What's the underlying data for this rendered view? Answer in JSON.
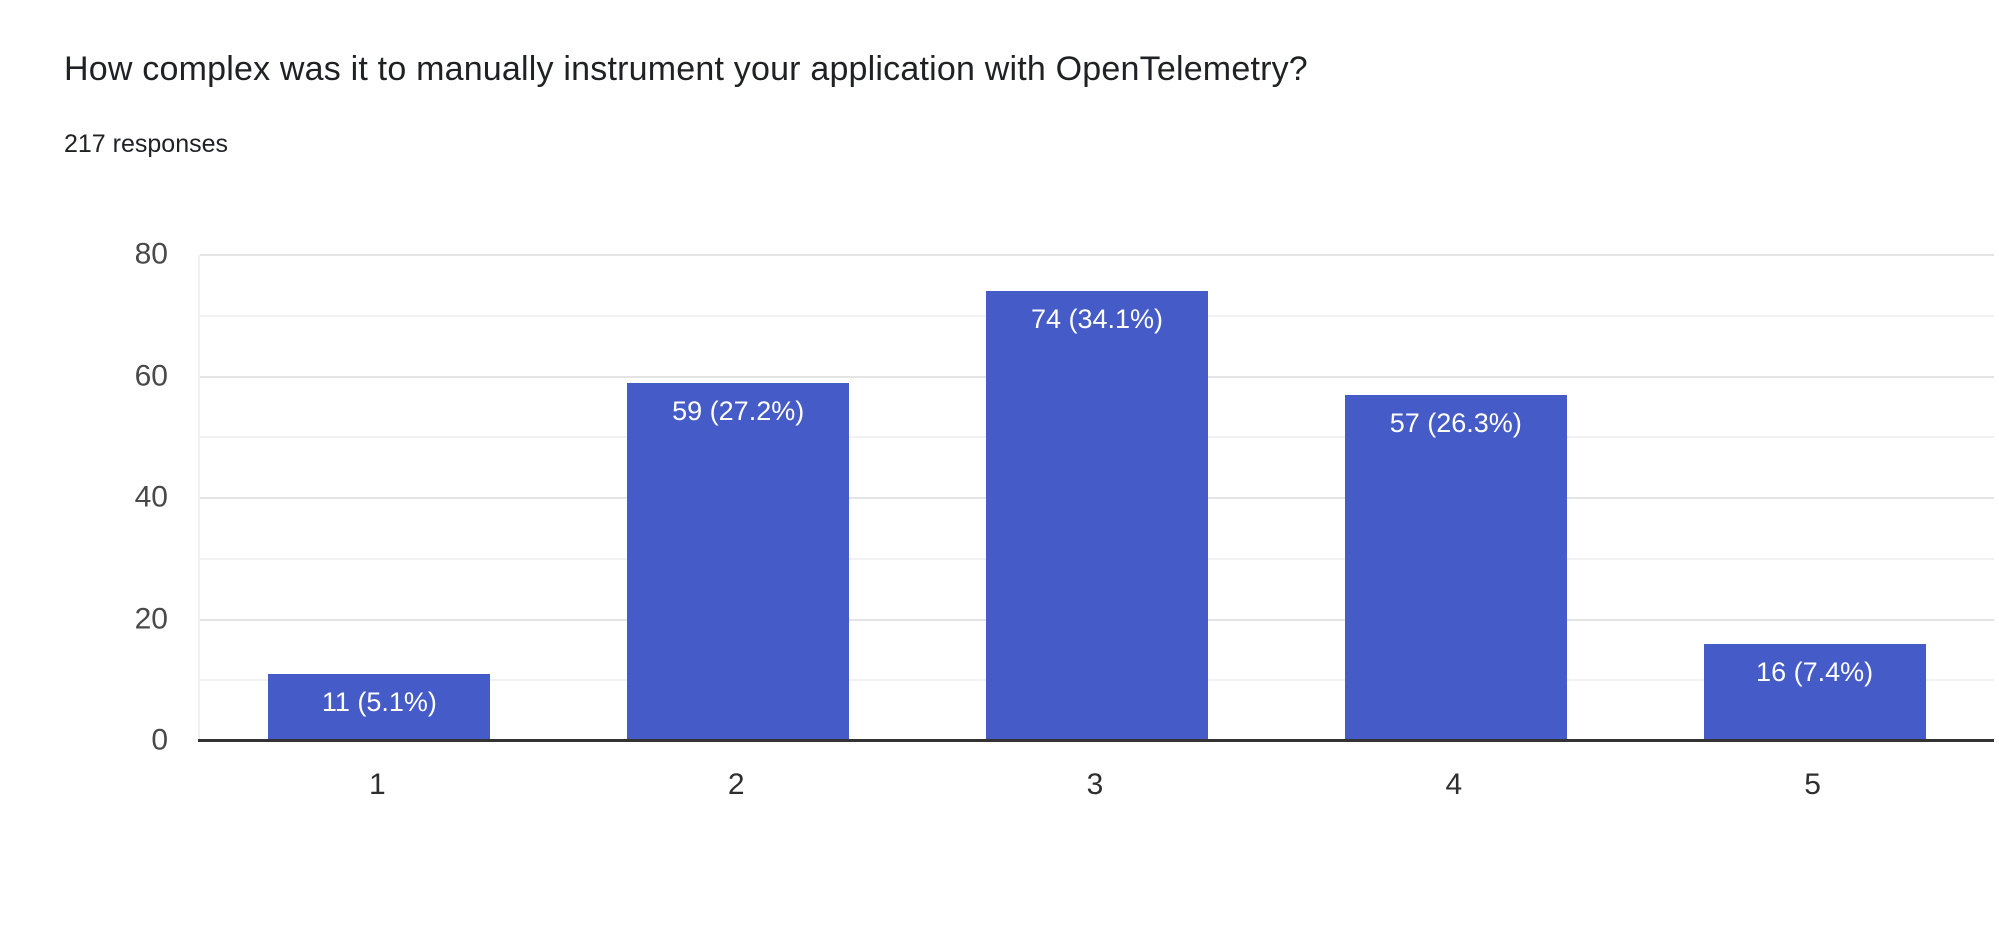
{
  "header": {
    "title": "How complex was it to manually instrument your application with OpenTelemetry?",
    "subtitle": "217 responses"
  },
  "chart_data": {
    "type": "bar",
    "title": "How complex was it to manually instrument your application with OpenTelemetry?",
    "subtitle": "217 responses",
    "categories": [
      "1",
      "2",
      "3",
      "4",
      "5"
    ],
    "values": [
      11,
      59,
      74,
      57,
      16
    ],
    "bar_labels": [
      "11 (5.1%)",
      "59 (27.2%)",
      "74 (34.1%)",
      "57 (26.3%)",
      "16 (7.4%)"
    ],
    "total_responses": 217,
    "xlabel": "",
    "ylabel": "",
    "ylim": [
      0,
      80
    ],
    "y_ticks": [
      0,
      20,
      40,
      60,
      80
    ],
    "gridline_step": 10,
    "grid_on": true,
    "legend_position": "none"
  },
  "colors": {
    "background": "#ffffff",
    "bar": "#455BC7",
    "bar_label_text": "#ffffff",
    "title_text": "#202124",
    "y_axis_text": "#494949",
    "x_axis_text": "#2e2e2e",
    "gridline_major": "#e4e4e4",
    "gridline_minor": "#f2f2f2",
    "baseline": "#333333"
  }
}
